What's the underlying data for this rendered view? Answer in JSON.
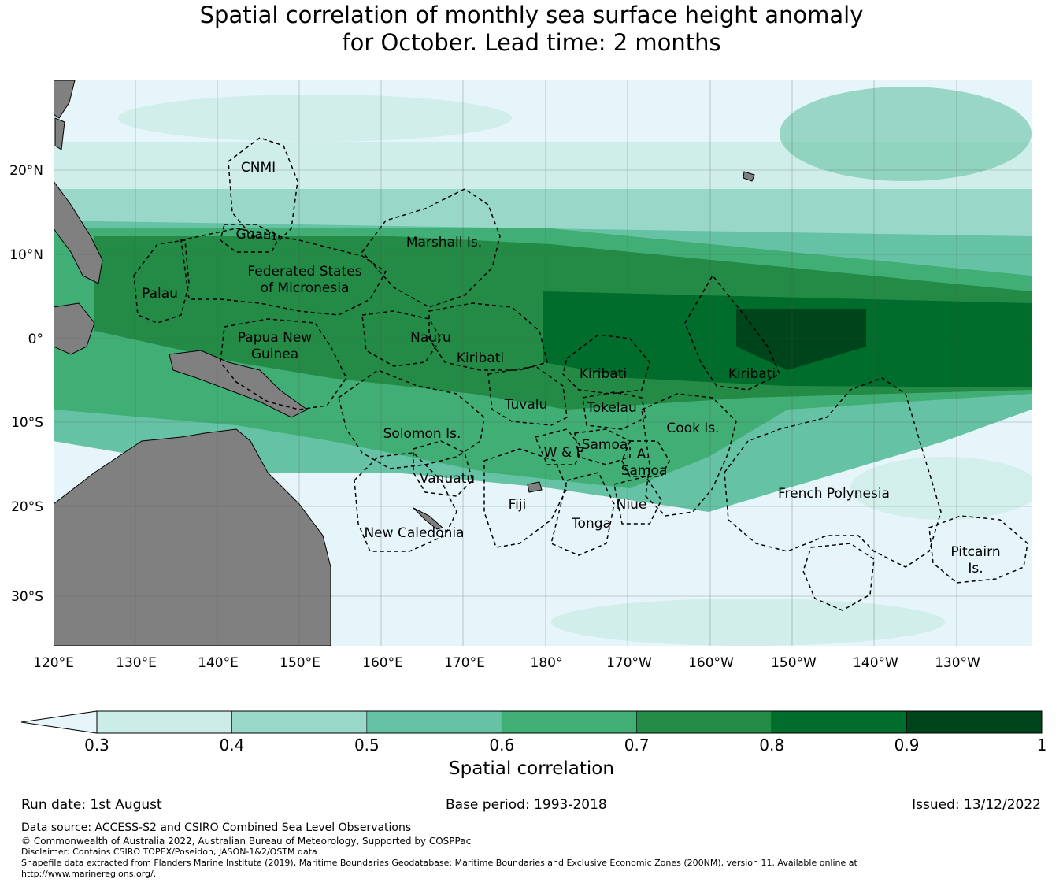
{
  "title_line1": "Spatial correlation of monthly sea surface height anomaly",
  "title_line2": "for October. Lead time: 2 months",
  "map": {
    "lon_labels": [
      "120°E",
      "130°E",
      "140°E",
      "150°E",
      "160°E",
      "170°E",
      "180°",
      "170°W",
      "160°W",
      "150°W",
      "140°W",
      "130°W"
    ],
    "lat_labels": [
      "20°N",
      "10°N",
      "0°",
      "10°S",
      "20°S",
      "30°S"
    ],
    "regions": [
      "CNMI",
      "Guam",
      "Marshall Is.",
      "Federated States",
      "of Micronesia",
      "Palau",
      "Papua New",
      "Guinea",
      "Nauru",
      "Kiribati",
      "Kiribati",
      "Kiribati",
      "Tuvalu",
      "Tokelau",
      "Cook Is.",
      "Solomon Is.",
      "W & F",
      "Samoa",
      "A.",
      "Samoa",
      "Vanuatu",
      "Fiji",
      "Niue",
      "Tonga",
      "French Polynesia",
      "New Caledonia",
      "Pitcairn",
      "Is."
    ],
    "colors": {
      "ocean_low": "#e5f5f9",
      "land": "#808080",
      "eez_border": "#000000"
    }
  },
  "colorbar": {
    "ticks": [
      "0.3",
      "0.4",
      "0.5",
      "0.6",
      "0.7",
      "0.8",
      "0.9",
      "1"
    ],
    "colors": [
      "#ccece6",
      "#99d8c9",
      "#66c2a4",
      "#41ae76",
      "#238b45",
      "#006d2c",
      "#00441b"
    ],
    "extend_color": "#e5f5f9",
    "label": "Spatial correlation"
  },
  "footer": {
    "run_date": "Run date: 1st August",
    "base_period": "Base period: 1993-2018",
    "issued": "Issued: 13/12/2022",
    "data_source": "Data source: ACCESS-S2 and CSIRO Combined Sea Level Observations",
    "copyright": "© Commonwealth of Australia 2022, Australian Bureau of Meteorology, Supported by COSPPac",
    "disclaimer": "Disclaimer: Contains CSIRO TOPEX/Poseidon, JASON-1&2/OSTM data",
    "shapefile1": "Shapefile data extracted from Flanders Marine Institute (2019), Maritime Boundaries Geodatabase: Maritime Boundaries and Exclusive Economic Zones (200NM), version 11. Available online at",
    "shapefile2": "http://www.marineregions.org/."
  }
}
